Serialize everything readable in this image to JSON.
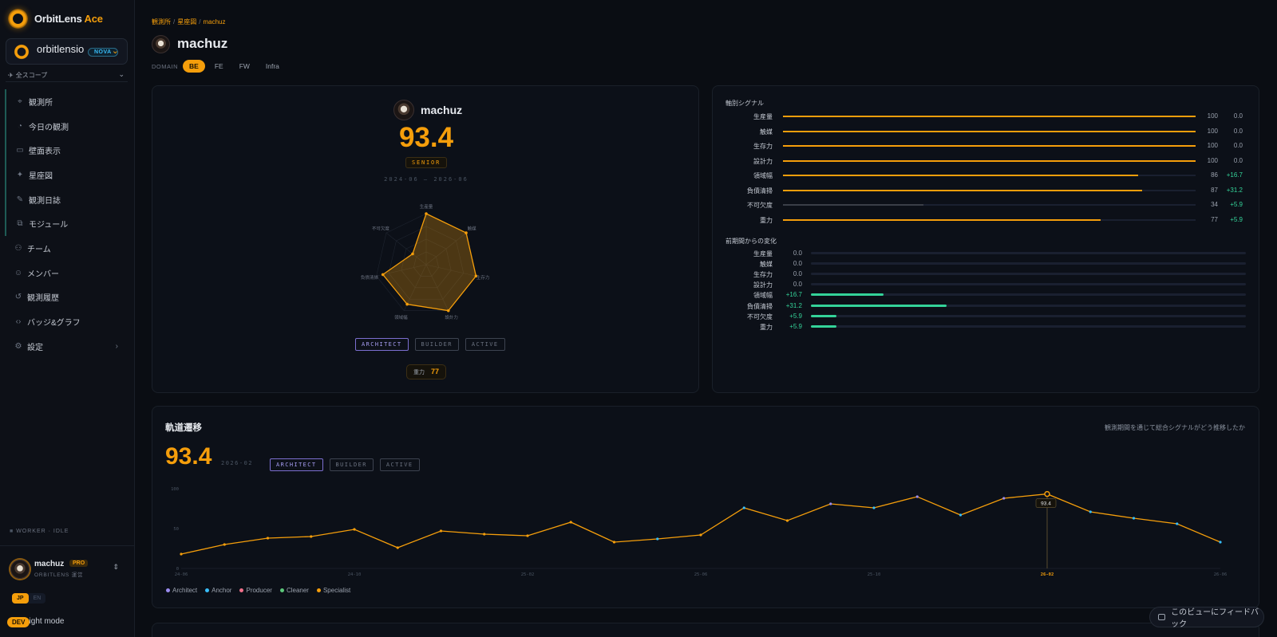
{
  "app": {
    "brand_main": "OrbitLens",
    "brand_accent": " Ace"
  },
  "org": {
    "name": "orbitlensio",
    "badge": "NOVA"
  },
  "scope": {
    "label": "全スコープ"
  },
  "sidebar": {
    "items": [
      {
        "label": "観測所",
        "icon": "telescope-icon",
        "bar": true
      },
      {
        "label": "今日の観測",
        "icon": "gauge-icon",
        "bar": true
      },
      {
        "label": "壁面表示",
        "icon": "monitor-icon",
        "bar": true
      },
      {
        "label": "星座図",
        "icon": "sparkles-icon",
        "bar": true
      },
      {
        "label": "観測日誌",
        "icon": "journal-icon",
        "bar": true
      },
      {
        "label": "モジュール",
        "icon": "modules-icon",
        "bar": true
      },
      {
        "label": "チーム",
        "icon": "team-icon",
        "bar": false
      },
      {
        "label": "メンバー",
        "icon": "members-icon",
        "bar": false
      },
      {
        "label": "観測履歴",
        "icon": "history-icon",
        "bar": false
      },
      {
        "label": "バッジ&グラフ",
        "icon": "code-icon",
        "bar": false
      },
      {
        "label": "設定",
        "icon": "gear-icon",
        "bar": false,
        "arrow": true
      }
    ],
    "worker_status": "WORKER · IDLE",
    "user": {
      "name": "machuz",
      "plan": "PRO",
      "subtitle": "ORBITLENS 運営"
    },
    "lang": {
      "jp": "JP",
      "en": "EN"
    },
    "light_mode": "Light mode",
    "dev_badge": "DEV"
  },
  "breadcrumb": [
    "観測所",
    "星座図",
    "machuz"
  ],
  "page": {
    "title": "machuz",
    "domain_label": "DOMAIN",
    "domain_tabs": [
      "BE",
      "FE",
      "FW",
      "Infra"
    ],
    "domain_active": "BE"
  },
  "profile": {
    "name": "machuz",
    "score": "93.4",
    "level": "SENIOR",
    "period": "2024-06 — 2026-06",
    "tags": [
      "ARCHITECT",
      "BUILDER",
      "ACTIVE"
    ],
    "gravity_label": "重力",
    "gravity_value": "77",
    "radar": {
      "axes": [
        "生産量",
        "触媒",
        "生存力",
        "設計力",
        "領域幅",
        "負債清掃",
        "不可欠度"
      ],
      "values": [
        100,
        100,
        100,
        100,
        86,
        87,
        34
      ]
    }
  },
  "signals": {
    "title": "軸別シグナル",
    "rows": [
      {
        "name": "生産量",
        "value": 100,
        "delta": "0.0",
        "pos": false
      },
      {
        "name": "触媒",
        "value": 100,
        "delta": "0.0",
        "pos": false
      },
      {
        "name": "生存力",
        "value": 100,
        "delta": "0.0",
        "pos": false
      },
      {
        "name": "設計力",
        "value": 100,
        "delta": "0.0",
        "pos": false
      },
      {
        "name": "領域幅",
        "value": 86,
        "delta": "+16.7",
        "pos": true
      },
      {
        "name": "負債清掃",
        "value": 87,
        "delta": "+31.2",
        "pos": true
      },
      {
        "name": "不可欠度",
        "value": 34,
        "delta": "+5.9",
        "pos": true,
        "dim": true
      },
      {
        "name": "重力",
        "value": 77,
        "delta": "+5.9",
        "pos": true
      }
    ],
    "change_title": "前期間からの変化",
    "changes": [
      {
        "name": "生産量",
        "value": "0.0",
        "amount": 0
      },
      {
        "name": "触媒",
        "value": "0.0",
        "amount": 0
      },
      {
        "name": "生存力",
        "value": "0.0",
        "amount": 0
      },
      {
        "name": "設計力",
        "value": "0.0",
        "amount": 0
      },
      {
        "name": "領域幅",
        "value": "+16.7",
        "amount": 16.7
      },
      {
        "name": "負債清掃",
        "value": "+31.2",
        "amount": 31.2
      },
      {
        "name": "不可欠度",
        "value": "+5.9",
        "amount": 5.9
      },
      {
        "name": "重力",
        "value": "+5.9",
        "amount": 5.9
      }
    ],
    "change_max": 100
  },
  "trajectory": {
    "title": "軌道遷移",
    "subtitle": "観測期間を通じて総合シグナルがどう推移したか",
    "score": "93.4",
    "date": "2026-02",
    "tags": [
      "ARCHITECT",
      "BUILDER",
      "ACTIVE"
    ],
    "legend": [
      {
        "name": "Architect",
        "color": "#9b8cf0"
      },
      {
        "name": "Anchor",
        "color": "#38bdf8"
      },
      {
        "name": "Producer",
        "color": "#f0708a"
      },
      {
        "name": "Cleaner",
        "color": "#5cc77a"
      },
      {
        "name": "Specialist",
        "color": "#f59e0b"
      }
    ]
  },
  "chart_data": {
    "type": "line",
    "x": [
      "24-06",
      "24-07",
      "24-08",
      "24-09",
      "24-10",
      "24-11",
      "24-12",
      "25-01",
      "25-02",
      "25-03",
      "25-04",
      "25-05",
      "25-06",
      "25-07",
      "25-08",
      "25-09",
      "25-10",
      "25-11",
      "25-12",
      "26-01",
      "26-02",
      "26-03",
      "26-04",
      "26-05",
      "26-06"
    ],
    "tick_labels": [
      "24-06",
      "24-10",
      "25-02",
      "25-06",
      "25-10",
      "26-02",
      "26-06"
    ],
    "y_ticks": [
      "100",
      "50",
      "0"
    ],
    "ylim": [
      0,
      100
    ],
    "series": [
      {
        "values": [
          18,
          30,
          38,
          40,
          49,
          26,
          47,
          43,
          41,
          58,
          33,
          37,
          42,
          76,
          60,
          81,
          76,
          90,
          67,
          88,
          93.4,
          71,
          63,
          56,
          33
        ]
      }
    ],
    "point_roles": [
      "Specialist",
      "Specialist",
      "Specialist",
      "Specialist",
      "Specialist",
      "Specialist",
      "Specialist",
      "Specialist",
      "Specialist",
      "Specialist",
      "Specialist",
      "Anchor",
      "Specialist",
      "Anchor",
      "Specialist",
      "Architect",
      "Anchor",
      "Architect",
      "Anchor",
      "Architect",
      "Specialist",
      "Anchor",
      "Anchor",
      "Anchor",
      "Anchor"
    ],
    "highlight": {
      "x": "26-02",
      "label": "93.4"
    }
  },
  "feedback": {
    "label": "このビューにフィードバック"
  }
}
